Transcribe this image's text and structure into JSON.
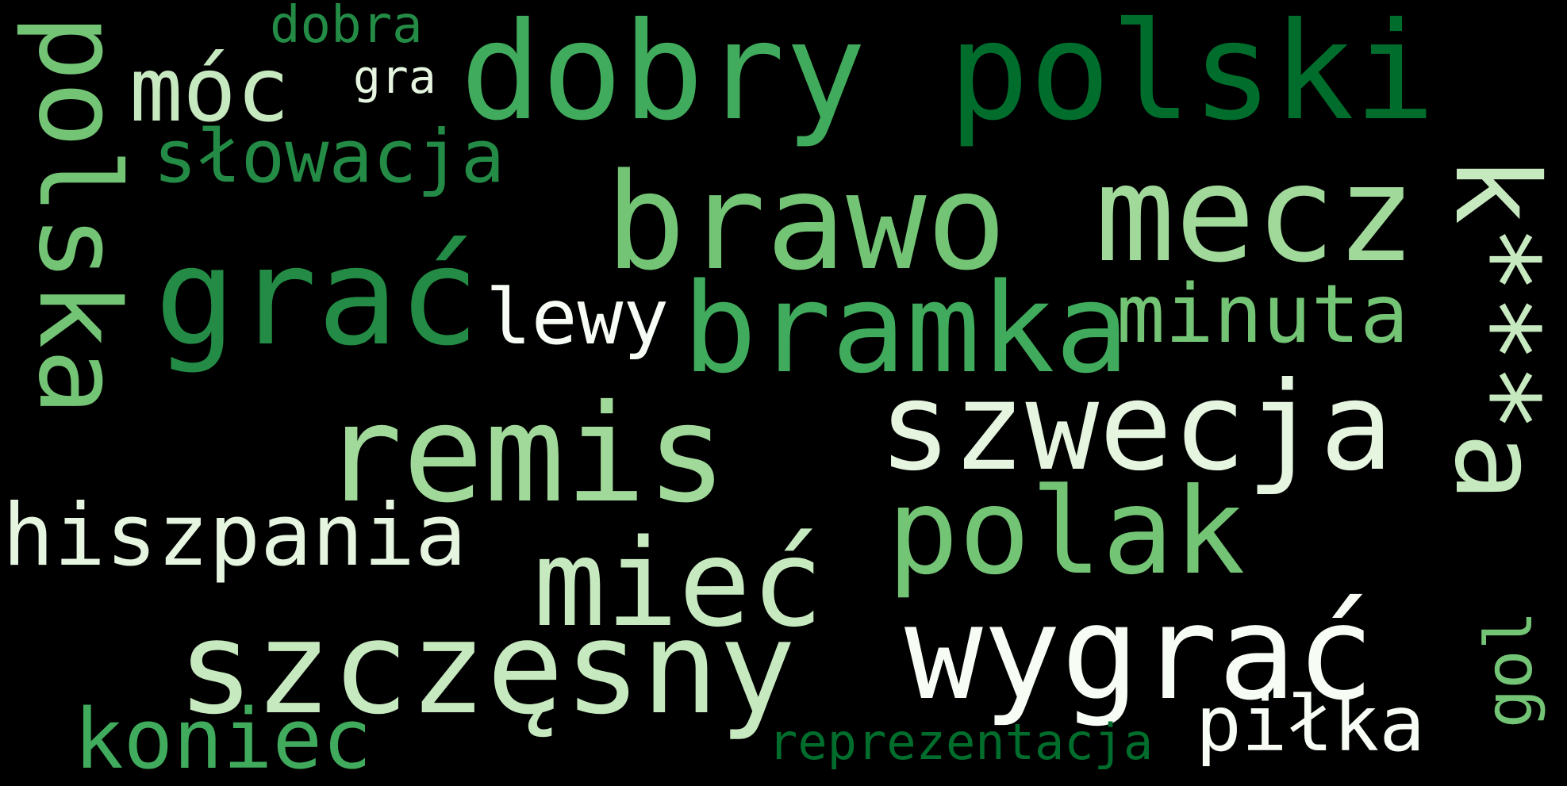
{
  "colors": {
    "background": "#000000",
    "scale": [
      "#f7fcf5",
      "#e5f5e0",
      "#c7e9c0",
      "#a1d99b",
      "#74c476",
      "#41ab5d",
      "#238b45",
      "#006d2c"
    ]
  },
  "words": [
    {
      "text": "dobra",
      "color": "#238b45"
    },
    {
      "text": "gra",
      "color": "#e5f5e0"
    },
    {
      "text": "móc",
      "color": "#c7e9c0"
    },
    {
      "text": "dobry",
      "color": "#41ab5d"
    },
    {
      "text": "polski",
      "color": "#006d2c"
    },
    {
      "text": "polska",
      "color": "#74c476"
    },
    {
      "text": "słowacja",
      "color": "#238b45"
    },
    {
      "text": "brawo",
      "color": "#74c476"
    },
    {
      "text": "mecz",
      "color": "#a1d99b"
    },
    {
      "text": "k***a",
      "color": "#c7e9c0"
    },
    {
      "text": "grać",
      "color": "#238b45"
    },
    {
      "text": "lewy",
      "color": "#f7fcf5"
    },
    {
      "text": "bramka",
      "color": "#41ab5d"
    },
    {
      "text": "minuta",
      "color": "#74c476"
    },
    {
      "text": "remis",
      "color": "#a1d99b"
    },
    {
      "text": "szwecja",
      "color": "#e5f5e0"
    },
    {
      "text": "polak",
      "color": "#74c476"
    },
    {
      "text": "hiszpania",
      "color": "#e5f5e0"
    },
    {
      "text": "mieć",
      "color": "#c7e9c0"
    },
    {
      "text": "szczęsny",
      "color": "#c7e9c0"
    },
    {
      "text": "wygrać",
      "color": "#f7fcf5"
    },
    {
      "text": "gol",
      "color": "#74c476"
    },
    {
      "text": "koniec",
      "color": "#41ab5d"
    },
    {
      "text": "reprezentacja",
      "color": "#006d2c"
    },
    {
      "text": "piłka",
      "color": "#f7fcf5"
    }
  ]
}
